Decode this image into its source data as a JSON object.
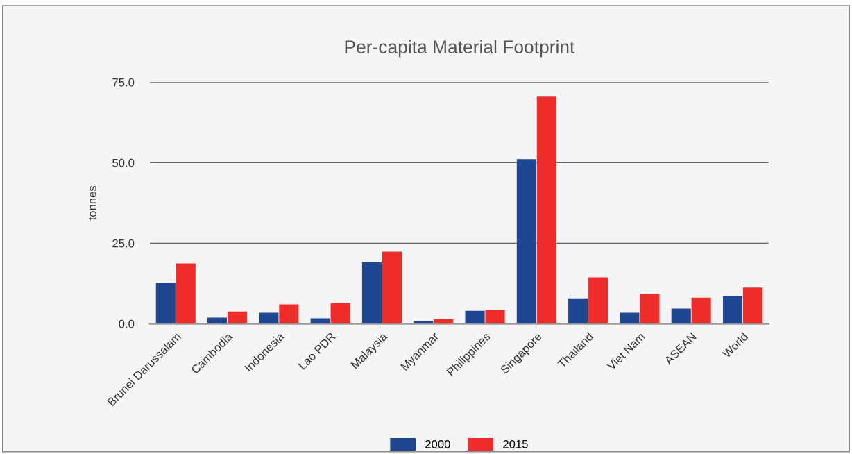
{
  "chart_data": {
    "type": "bar",
    "title": "Per-capita Material Footprint",
    "ylabel": "tonnes",
    "categories": [
      "Brunei Darussalam",
      "Cambodia",
      "Indonesia",
      "Lao PDR",
      "Malaysia",
      "Myanmar",
      "Philippines",
      "Singapore",
      "Thailand",
      "Viet Nam",
      "ASEAN",
      "World"
    ],
    "series": [
      {
        "name": "2000",
        "color": "#1f4690",
        "values": [
          12.7,
          1.9,
          3.4,
          1.7,
          19.1,
          0.8,
          4.0,
          51.1,
          7.9,
          3.4,
          4.7,
          8.6
        ]
      },
      {
        "name": "2015",
        "color": "#ee2c2a",
        "values": [
          18.7,
          3.8,
          6.0,
          6.4,
          22.4,
          1.4,
          4.2,
          70.5,
          14.4,
          9.2,
          8.1,
          11.2
        ]
      }
    ],
    "ylim": [
      0,
      75
    ],
    "yticks": [
      {
        "value": 0,
        "label": "0.0"
      },
      {
        "value": 25,
        "label": "25.0"
      },
      {
        "value": 50,
        "label": "50.0"
      },
      {
        "value": 75,
        "label": "75.0"
      }
    ],
    "grid": "y",
    "legend": "bottom"
  }
}
